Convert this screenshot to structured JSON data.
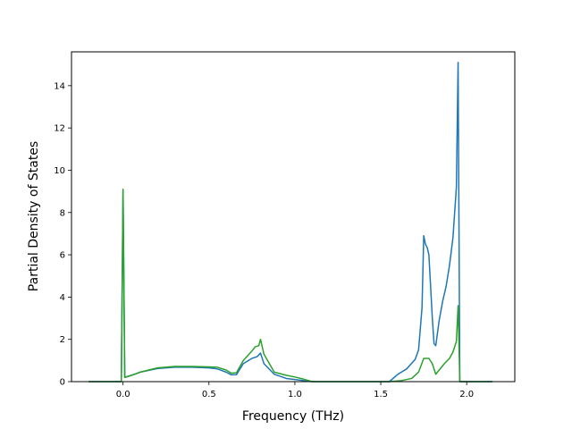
{
  "chart_data": {
    "type": "line",
    "xlabel": "Frequency (THz)",
    "ylabel": "Partial Density of States",
    "xlim": [
      -0.3,
      2.28
    ],
    "ylim": [
      0,
      15.6
    ],
    "x_ticks": [
      0.0,
      0.5,
      1.0,
      1.5,
      2.0
    ],
    "x_tick_labels": [
      "0.0",
      "0.5",
      "1.0",
      "1.5",
      "2.0"
    ],
    "y_ticks": [
      0,
      2,
      4,
      6,
      8,
      10,
      12,
      14
    ],
    "y_tick_labels": [
      "0",
      "2",
      "4",
      "6",
      "8",
      "10",
      "12",
      "14"
    ],
    "grid": false,
    "series": [
      {
        "color": "#1f77b4",
        "points": [
          [
            -0.2,
            0
          ],
          [
            -0.01,
            0
          ],
          [
            0.0,
            9.0
          ],
          [
            0.01,
            0.2
          ],
          [
            0.05,
            0.3
          ],
          [
            0.1,
            0.45
          ],
          [
            0.2,
            0.62
          ],
          [
            0.3,
            0.68
          ],
          [
            0.4,
            0.68
          ],
          [
            0.5,
            0.65
          ],
          [
            0.55,
            0.6
          ],
          [
            0.6,
            0.45
          ],
          [
            0.63,
            0.32
          ],
          [
            0.66,
            0.33
          ],
          [
            0.7,
            0.85
          ],
          [
            0.75,
            1.1
          ],
          [
            0.78,
            1.18
          ],
          [
            0.8,
            1.35
          ],
          [
            0.82,
            0.85
          ],
          [
            0.88,
            0.35
          ],
          [
            0.95,
            0.15
          ],
          [
            1.0,
            0.1
          ],
          [
            1.05,
            0.05
          ],
          [
            1.1,
            0
          ],
          [
            1.55,
            0
          ],
          [
            1.6,
            0.35
          ],
          [
            1.65,
            0.6
          ],
          [
            1.7,
            1.05
          ],
          [
            1.72,
            1.5
          ],
          [
            1.74,
            3.5
          ],
          [
            1.75,
            6.9
          ],
          [
            1.76,
            6.5
          ],
          [
            1.77,
            6.35
          ],
          [
            1.78,
            6.0
          ],
          [
            1.79,
            4.5
          ],
          [
            1.8,
            3.0
          ],
          [
            1.81,
            1.8
          ],
          [
            1.82,
            1.7
          ],
          [
            1.84,
            2.9
          ],
          [
            1.86,
            3.8
          ],
          [
            1.88,
            4.5
          ],
          [
            1.9,
            5.5
          ],
          [
            1.92,
            6.8
          ],
          [
            1.94,
            9.2
          ],
          [
            1.95,
            15.1
          ],
          [
            1.96,
            0
          ],
          [
            2.15,
            0
          ]
        ]
      },
      {
        "color": "#2ca02c",
        "points": [
          [
            -0.2,
            0
          ],
          [
            -0.01,
            0
          ],
          [
            0.0,
            9.1
          ],
          [
            0.01,
            0.2
          ],
          [
            0.05,
            0.3
          ],
          [
            0.1,
            0.45
          ],
          [
            0.2,
            0.65
          ],
          [
            0.3,
            0.72
          ],
          [
            0.4,
            0.72
          ],
          [
            0.5,
            0.7
          ],
          [
            0.55,
            0.68
          ],
          [
            0.6,
            0.55
          ],
          [
            0.63,
            0.4
          ],
          [
            0.66,
            0.42
          ],
          [
            0.7,
            1.0
          ],
          [
            0.75,
            1.45
          ],
          [
            0.77,
            1.65
          ],
          [
            0.79,
            1.7
          ],
          [
            0.8,
            2.0
          ],
          [
            0.82,
            1.3
          ],
          [
            0.88,
            0.45
          ],
          [
            0.95,
            0.3
          ],
          [
            1.0,
            0.22
          ],
          [
            1.05,
            0.12
          ],
          [
            1.08,
            0.05
          ],
          [
            1.1,
            0
          ],
          [
            1.55,
            0
          ],
          [
            1.62,
            0.05
          ],
          [
            1.68,
            0.15
          ],
          [
            1.72,
            0.45
          ],
          [
            1.75,
            1.1
          ],
          [
            1.78,
            1.1
          ],
          [
            1.8,
            0.85
          ],
          [
            1.82,
            0.35
          ],
          [
            1.84,
            0.55
          ],
          [
            1.87,
            0.85
          ],
          [
            1.9,
            1.1
          ],
          [
            1.92,
            1.4
          ],
          [
            1.94,
            1.9
          ],
          [
            1.95,
            3.6
          ],
          [
            1.96,
            0
          ],
          [
            2.15,
            0
          ]
        ]
      }
    ]
  }
}
